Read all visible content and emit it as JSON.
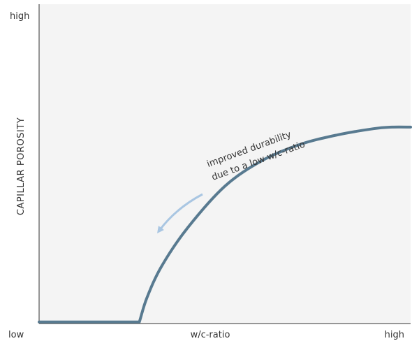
{
  "chart_data": {
    "type": "line",
    "xlabel": "w/c-ratio",
    "ylabel": "CAPILLAR POROSITY",
    "x_tick_labels": {
      "low": "low",
      "high": "high"
    },
    "y_tick_labels": {
      "low": "",
      "high": "high"
    },
    "xlim": [
      0,
      1
    ],
    "ylim": [
      0,
      1
    ],
    "grid": false,
    "legend": "none",
    "series": [
      {
        "x": [
          0.0,
          0.27,
          0.29,
          0.33,
          0.4,
          0.5,
          0.6,
          0.7,
          0.8,
          0.9,
          0.95,
          1.0
        ],
        "y": [
          0.005,
          0.005,
          0.08,
          0.18,
          0.3,
          0.43,
          0.51,
          0.56,
          0.59,
          0.61,
          0.615,
          0.615
        ]
      }
    ],
    "annotations": [
      {
        "lines": [
          "improved durability",
          "due to a low w/c-ratio"
        ]
      }
    ],
    "colors": {
      "line": "#587a90",
      "arrow": "#a9c6e2",
      "plot_bg": "#f4f4f4",
      "axis": "#333333"
    }
  }
}
